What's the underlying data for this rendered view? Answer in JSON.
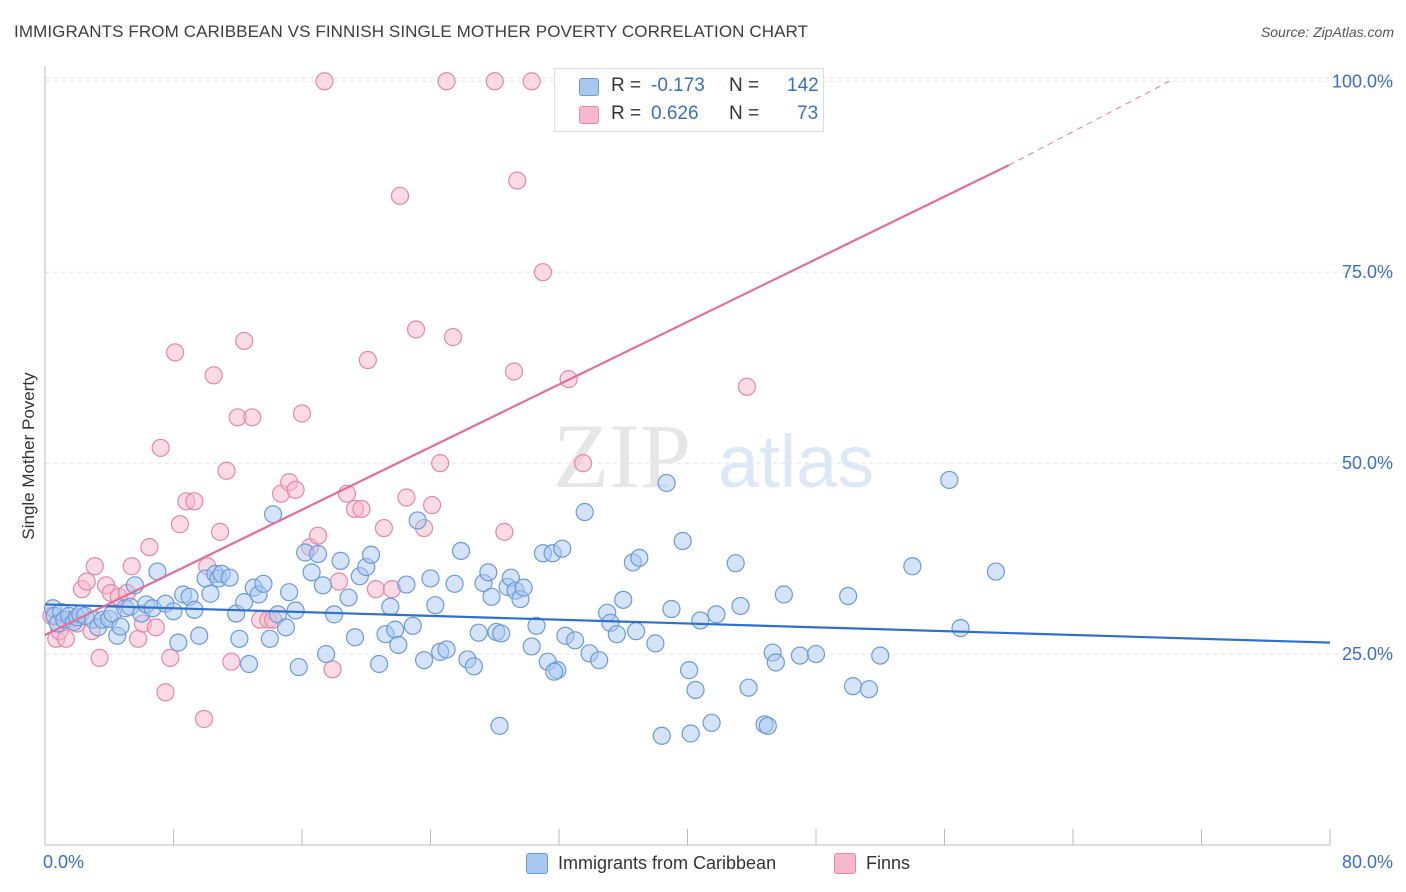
{
  "header": {
    "title": "IMMIGRANTS FROM CARIBBEAN VS FINNISH SINGLE MOTHER POVERTY CORRELATION CHART",
    "source": "Source: ZipAtlas.com"
  },
  "watermark": {
    "zip": "ZIP",
    "atlas": "atlas"
  },
  "legend": {
    "r_label": "R =",
    "n_label": "N =",
    "rows": [
      {
        "r": "-0.173",
        "n": "142"
      },
      {
        "r": "0.626",
        "n": "73"
      }
    ]
  },
  "colors": {
    "blue_fill": "#a9c8f0",
    "blue_stroke": "#6b9ad8",
    "blue_line": "#2f6fcf",
    "pink_fill": "#f5b8cc",
    "pink_stroke": "#e488a8",
    "pink_line": "#e0709a",
    "tick_label": "#3a6fc9",
    "grid": "#e2e2e2"
  },
  "chart_data": {
    "type": "scatter",
    "title": "IMMIGRANTS FROM CARIBBEAN VS FINNISH SINGLE MOTHER POVERTY CORRELATION CHART",
    "xlabel": "",
    "ylabel": "Single Mother Poverty",
    "xlim": [
      0,
      80
    ],
    "ylim": [
      0,
      102
    ],
    "x_tick_labels": [
      "0.0%",
      "80.0%"
    ],
    "y_ticks": [
      25,
      50,
      75,
      100
    ],
    "y_tick_labels": [
      "25.0%",
      "50.0%",
      "75.0%",
      "100.0%"
    ],
    "grid": true,
    "legend_position": "bottom-center",
    "series": [
      {
        "name": "Immigrants from Caribbean",
        "color": "#a9c8f0",
        "r": -0.173,
        "n": 142,
        "trend": {
          "x": [
            0,
            80
          ],
          "y": [
            31.5,
            26.5
          ]
        },
        "points": [
          [
            0.5,
            31
          ],
          [
            0.6,
            30
          ],
          [
            0.8,
            29
          ],
          [
            1,
            30.5
          ],
          [
            1.2,
            29.5
          ],
          [
            1.5,
            30
          ],
          [
            1.8,
            29.2
          ],
          [
            2,
            29.8
          ],
          [
            2.2,
            30.2
          ],
          [
            2.5,
            30
          ],
          [
            3,
            29.5
          ],
          [
            3.3,
            28.5
          ],
          [
            3.6,
            29.5
          ],
          [
            4,
            29.6
          ],
          [
            4.2,
            30.3
          ],
          [
            4.5,
            27.4
          ],
          [
            4.7,
            28.6
          ],
          [
            5,
            31
          ],
          [
            5.3,
            31.2
          ],
          [
            5.6,
            34
          ],
          [
            6,
            30.3
          ],
          [
            6.3,
            31.5
          ],
          [
            6.7,
            31
          ],
          [
            7,
            35.8
          ],
          [
            7.5,
            31.6
          ],
          [
            8,
            30.6
          ],
          [
            8.3,
            26.5
          ],
          [
            8.6,
            32.8
          ],
          [
            9,
            32.5
          ],
          [
            9.3,
            30.8
          ],
          [
            9.6,
            27.4
          ],
          [
            10,
            34.9
          ],
          [
            10.3,
            32.9
          ],
          [
            10.6,
            35.5
          ],
          [
            10.8,
            34.9
          ],
          [
            11,
            35.5
          ],
          [
            11.5,
            35
          ],
          [
            11.9,
            30.3
          ],
          [
            12.1,
            27
          ],
          [
            12.4,
            31.8
          ],
          [
            12.7,
            23.7
          ],
          [
            13,
            33.7
          ],
          [
            13.3,
            32.8
          ],
          [
            13.6,
            34.2
          ],
          [
            14,
            27
          ],
          [
            14.2,
            43.3
          ],
          [
            14.5,
            30.2
          ],
          [
            15,
            28.5
          ],
          [
            15.2,
            33.1
          ],
          [
            15.6,
            30.7
          ],
          [
            15.8,
            23.3
          ],
          [
            16.2,
            38.3
          ],
          [
            16.6,
            35.7
          ],
          [
            17,
            38.1
          ],
          [
            17.3,
            34
          ],
          [
            17.5,
            25
          ],
          [
            18,
            30.2
          ],
          [
            18.4,
            37.2
          ],
          [
            18.9,
            32.4
          ],
          [
            19.3,
            27.2
          ],
          [
            19.6,
            35.2
          ],
          [
            20,
            36.4
          ],
          [
            20.3,
            38
          ],
          [
            20.8,
            23.7
          ],
          [
            21.2,
            27.6
          ],
          [
            21.5,
            31.2
          ],
          [
            21.8,
            28.2
          ],
          [
            22,
            26.2
          ],
          [
            22.5,
            34.1
          ],
          [
            22.9,
            28.7
          ],
          [
            23.2,
            42.5
          ],
          [
            23.6,
            24.2
          ],
          [
            24,
            34.9
          ],
          [
            24.3,
            31.4
          ],
          [
            24.6,
            25.3
          ],
          [
            25,
            25.6
          ],
          [
            25.5,
            34.2
          ],
          [
            25.9,
            38.5
          ],
          [
            26.3,
            24.3
          ],
          [
            26.7,
            23.4
          ],
          [
            27,
            27.8
          ],
          [
            27.3,
            34.3
          ],
          [
            27.6,
            35.7
          ],
          [
            27.8,
            32.5
          ],
          [
            28.1,
            27.9
          ],
          [
            28.4,
            27.7
          ],
          [
            28.8,
            33.8
          ],
          [
            29,
            35
          ],
          [
            29.3,
            33.3
          ],
          [
            29.6,
            32.2
          ],
          [
            29.8,
            33.7
          ],
          [
            30.3,
            26
          ],
          [
            30.6,
            28.7
          ],
          [
            31,
            38.2
          ],
          [
            31.3,
            24
          ],
          [
            31.6,
            38.2
          ],
          [
            31.9,
            22.9
          ],
          [
            32.2,
            38.8
          ],
          [
            32.4,
            27.4
          ],
          [
            33,
            26.8
          ],
          [
            33.6,
            43.6
          ],
          [
            33.9,
            25.1
          ],
          [
            34.5,
            24.2
          ],
          [
            35,
            30.4
          ],
          [
            35.2,
            29.1
          ],
          [
            35.6,
            27.6
          ],
          [
            36,
            32.1
          ],
          [
            36.6,
            37
          ],
          [
            36.8,
            28
          ],
          [
            37,
            37.6
          ],
          [
            38,
            26.4
          ],
          [
            38.7,
            47.4
          ],
          [
            39,
            30.9
          ],
          [
            39.7,
            39.8
          ],
          [
            40.1,
            22.9
          ],
          [
            40.5,
            20.3
          ],
          [
            40.8,
            29.4
          ],
          [
            41.5,
            16
          ],
          [
            41.8,
            30.2
          ],
          [
            43,
            36.9
          ],
          [
            43.3,
            31.3
          ],
          [
            43.8,
            20.6
          ],
          [
            44.8,
            15.8
          ],
          [
            45,
            15.6
          ],
          [
            45.3,
            25.2
          ],
          [
            45.5,
            23.9
          ],
          [
            46,
            32.8
          ],
          [
            47,
            24.8
          ],
          [
            48,
            25
          ],
          [
            50,
            32.6
          ],
          [
            50.3,
            20.8
          ],
          [
            51.3,
            20.4
          ],
          [
            52,
            24.8
          ],
          [
            54,
            36.5
          ],
          [
            56.3,
            47.8
          ],
          [
            57,
            28.4
          ],
          [
            59.2,
            35.8
          ],
          [
            28.3,
            15.6
          ],
          [
            38.4,
            14.3
          ],
          [
            40.2,
            14.6
          ],
          [
            31.7,
            22.7
          ]
        ]
      },
      {
        "name": "Finns",
        "color": "#f5b8cc",
        "r": 0.626,
        "n": 73,
        "trend": {
          "x": [
            0,
            60
          ],
          "y": [
            27.5,
            89
          ]
        },
        "trend_extension": {
          "x": [
            60,
            70
          ],
          "y": [
            89,
            100
          ]
        },
        "points": [
          [
            0.4,
            30
          ],
          [
            0.7,
            27
          ],
          [
            0.9,
            28
          ],
          [
            1.3,
            27
          ],
          [
            1.6,
            29.5
          ],
          [
            2,
            29
          ],
          [
            2.3,
            33.5
          ],
          [
            2.6,
            34.5
          ],
          [
            2.9,
            28
          ],
          [
            3.1,
            36.5
          ],
          [
            3.4,
            24.5
          ],
          [
            3.8,
            34
          ],
          [
            4.1,
            33
          ],
          [
            4.6,
            32.5
          ],
          [
            5.1,
            33
          ],
          [
            5.4,
            36.5
          ],
          [
            5.8,
            27
          ],
          [
            6.1,
            29
          ],
          [
            6.5,
            39
          ],
          [
            6.9,
            28.5
          ],
          [
            7.2,
            52
          ],
          [
            7.5,
            20
          ],
          [
            7.8,
            24.5
          ],
          [
            8.1,
            64.5
          ],
          [
            8.4,
            42
          ],
          [
            8.8,
            45
          ],
          [
            9.3,
            45
          ],
          [
            9.9,
            16.5
          ],
          [
            10.1,
            36.5
          ],
          [
            10.5,
            61.5
          ],
          [
            10.9,
            41
          ],
          [
            11.3,
            49
          ],
          [
            11.6,
            24
          ],
          [
            12,
            56
          ],
          [
            12.4,
            66
          ],
          [
            12.9,
            56
          ],
          [
            13.4,
            29.5
          ],
          [
            13.9,
            29.5
          ],
          [
            14.2,
            29.5
          ],
          [
            14.7,
            46
          ],
          [
            15.2,
            47.5
          ],
          [
            15.6,
            46.5
          ],
          [
            16,
            56.5
          ],
          [
            16.5,
            39
          ],
          [
            17,
            40.5
          ],
          [
            17.4,
            100
          ],
          [
            17.9,
            23
          ],
          [
            18.3,
            34.5
          ],
          [
            18.8,
            46
          ],
          [
            19.3,
            44
          ],
          [
            19.7,
            44
          ],
          [
            20.1,
            63.5
          ],
          [
            20.6,
            33.5
          ],
          [
            21.1,
            41.5
          ],
          [
            21.6,
            33.5
          ],
          [
            22.1,
            85
          ],
          [
            22.5,
            45.5
          ],
          [
            23.1,
            67.5
          ],
          [
            23.6,
            41.5
          ],
          [
            24.1,
            44.5
          ],
          [
            24.6,
            50
          ],
          [
            25,
            100
          ],
          [
            25.4,
            66.5
          ],
          [
            28,
            100
          ],
          [
            28.6,
            41
          ],
          [
            29.2,
            62
          ],
          [
            29.4,
            87
          ],
          [
            30.3,
            100
          ],
          [
            31,
            75
          ],
          [
            32.6,
            61
          ],
          [
            33.5,
            50
          ],
          [
            43,
            100
          ],
          [
            43.7,
            60
          ]
        ]
      }
    ]
  }
}
